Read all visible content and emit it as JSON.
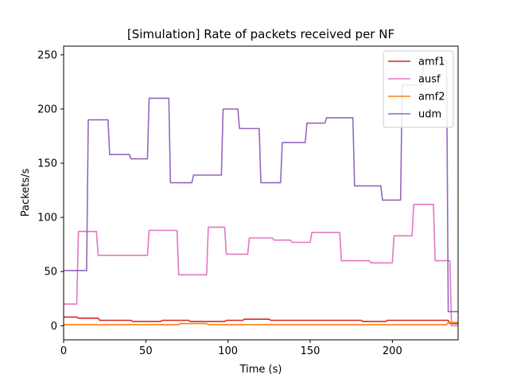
{
  "chart_data": {
    "type": "line",
    "title": "[Simulation] Rate of packets received per NF",
    "xlabel": "Time (s)",
    "ylabel": "Packets/s",
    "xlim": [
      0,
      240
    ],
    "ylim": [
      -13,
      258
    ],
    "xticks": [
      0,
      50,
      100,
      150,
      200
    ],
    "yticks": [
      0,
      50,
      100,
      150,
      200,
      250
    ],
    "grid": false,
    "legend": "top-right",
    "series": [
      {
        "name": "amf1",
        "color": "#d62728",
        "points": [
          [
            0,
            8
          ],
          [
            8,
            8
          ],
          [
            9,
            7
          ],
          [
            21,
            7
          ],
          [
            22,
            5
          ],
          [
            41,
            5
          ],
          [
            42,
            4
          ],
          [
            59,
            4
          ],
          [
            60,
            5
          ],
          [
            76,
            5
          ],
          [
            77,
            4
          ],
          [
            98,
            4
          ],
          [
            99,
            5
          ],
          [
            109,
            5
          ],
          [
            110,
            6
          ],
          [
            125,
            6
          ],
          [
            126,
            5
          ],
          [
            170,
            5
          ],
          [
            171,
            5
          ],
          [
            181,
            5
          ],
          [
            182,
            4
          ],
          [
            196,
            4
          ],
          [
            197,
            5
          ],
          [
            208,
            5
          ],
          [
            209,
            5
          ],
          [
            221,
            5
          ],
          [
            222,
            5
          ],
          [
            234,
            5
          ],
          [
            235,
            2
          ],
          [
            240,
            2
          ]
        ]
      },
      {
        "name": "ausf",
        "color": "#e377c2",
        "points": [
          [
            0,
            20
          ],
          [
            8,
            20
          ],
          [
            9,
            87
          ],
          [
            20,
            87
          ],
          [
            21,
            65
          ],
          [
            34,
            65
          ],
          [
            35,
            65
          ],
          [
            51,
            65
          ],
          [
            52,
            88
          ],
          [
            69,
            88
          ],
          [
            70,
            47
          ],
          [
            87,
            47
          ],
          [
            88,
            91
          ],
          [
            98,
            91
          ],
          [
            99,
            66
          ],
          [
            112,
            66
          ],
          [
            113,
            81
          ],
          [
            127,
            81
          ],
          [
            128,
            79
          ],
          [
            138,
            79
          ],
          [
            139,
            77
          ],
          [
            150,
            77
          ],
          [
            151,
            86
          ],
          [
            168,
            86
          ],
          [
            169,
            60
          ],
          [
            186,
            60
          ],
          [
            187,
            58
          ],
          [
            200,
            58
          ],
          [
            201,
            83
          ],
          [
            212,
            83
          ],
          [
            213,
            112
          ],
          [
            225,
            112
          ],
          [
            226,
            60
          ],
          [
            235,
            60
          ],
          [
            236,
            0
          ],
          [
            240,
            0
          ]
        ]
      },
      {
        "name": "amf2",
        "color": "#ff7f0e",
        "points": [
          [
            0,
            1
          ],
          [
            8,
            1
          ],
          [
            9,
            1
          ],
          [
            20,
            1
          ],
          [
            21,
            1
          ],
          [
            70,
            1
          ],
          [
            71,
            2
          ],
          [
            87,
            2
          ],
          [
            88,
            1
          ],
          [
            190,
            1
          ],
          [
            191,
            1
          ],
          [
            233,
            1
          ],
          [
            234,
            3
          ],
          [
            240,
            3
          ]
        ]
      },
      {
        "name": "udm",
        "color": "#9467bd",
        "points": [
          [
            0,
            51
          ],
          [
            14,
            51
          ],
          [
            15,
            190
          ],
          [
            27,
            190
          ],
          [
            28,
            158
          ],
          [
            40,
            158
          ],
          [
            41,
            154
          ],
          [
            51,
            154
          ],
          [
            52,
            210
          ],
          [
            64,
            210
          ],
          [
            65,
            132
          ],
          [
            78,
            132
          ],
          [
            79,
            139
          ],
          [
            96,
            139
          ],
          [
            97,
            200
          ],
          [
            106,
            200
          ],
          [
            107,
            182
          ],
          [
            119,
            182
          ],
          [
            120,
            132
          ],
          [
            132,
            132
          ],
          [
            133,
            169
          ],
          [
            147,
            169
          ],
          [
            148,
            187
          ],
          [
            159,
            187
          ],
          [
            160,
            192
          ],
          [
            176,
            192
          ],
          [
            177,
            129
          ],
          [
            193,
            129
          ],
          [
            194,
            116
          ],
          [
            205,
            116
          ],
          [
            206,
            222
          ],
          [
            218,
            222
          ],
          [
            219,
            245
          ],
          [
            233,
            245
          ],
          [
            234,
            13
          ],
          [
            240,
            13
          ]
        ]
      }
    ]
  }
}
